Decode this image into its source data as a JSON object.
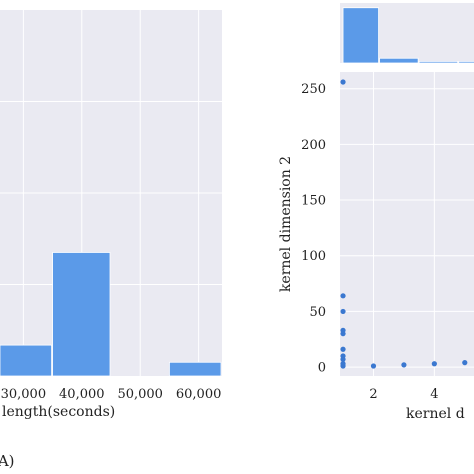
{
  "colors": {
    "bar": "#5b9ae8",
    "point": "#3b78d0",
    "plot_bg": "#eaeaf2",
    "grid": "#ffffff"
  },
  "panel_label": "(A)",
  "chart_data": [
    {
      "type": "bar",
      "xlabel": "length(seconds)",
      "x_ticks": [
        30000,
        40000,
        50000,
        60000
      ],
      "x_tick_labels": [
        "30,000",
        "40,000",
        "50,000",
        "60,000"
      ],
      "xlim": [
        26000,
        64000
      ],
      "ylim": [
        0,
        32
      ],
      "bins": [
        {
          "start": 25000,
          "end": 35000,
          "count": 2.7
        },
        {
          "start": 35000,
          "end": 45000,
          "count": 10.8
        },
        {
          "start": 45000,
          "end": 55000,
          "count": 0
        },
        {
          "start": 55000,
          "end": 65000,
          "count": 1.2
        }
      ]
    },
    {
      "type": "scatter",
      "xlabel": "kernel d",
      "ylabel": "kernel dimension 2",
      "x_ticks": [
        2,
        4
      ],
      "y_ticks": [
        0,
        50,
        100,
        150,
        200,
        250
      ],
      "xlim": [
        0.9,
        5.5
      ],
      "ylim": [
        -8,
        265
      ],
      "points": [
        [
          1,
          256
        ],
        [
          1,
          64
        ],
        [
          1,
          50
        ],
        [
          1,
          33
        ],
        [
          1,
          30
        ],
        [
          1,
          16
        ],
        [
          1,
          10
        ],
        [
          1,
          7
        ],
        [
          1,
          3
        ],
        [
          1,
          1
        ],
        [
          2,
          1
        ],
        [
          3,
          2
        ],
        [
          4,
          3
        ],
        [
          5,
          4
        ]
      ],
      "marginal_top": {
        "bins": [
          {
            "start": 1.0,
            "end": 2.2,
            "count": 35
          },
          {
            "start": 2.2,
            "end": 3.5,
            "count": 3
          },
          {
            "start": 3.5,
            "end": 4.8,
            "count": 1
          },
          {
            "start": 4.8,
            "end": 6.0,
            "count": 1
          }
        ],
        "ymax": 38
      }
    }
  ]
}
